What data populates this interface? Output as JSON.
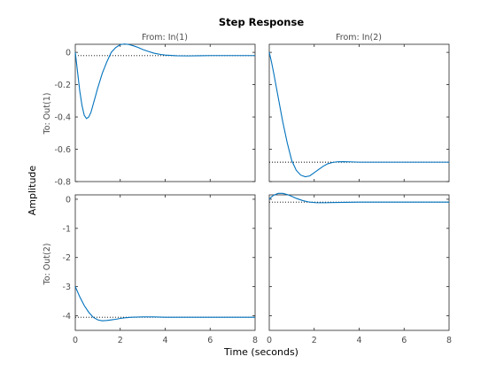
{
  "chart_data": {
    "type": "line",
    "title": "Step Response",
    "xlabel": "Time (seconds)",
    "ylabel": "Amplitude",
    "grid": false,
    "legend": "none",
    "colors": {
      "response": "#0072bd",
      "steady_state": "#000000",
      "frame": "#262626",
      "axis_text": "#4d4d4d"
    },
    "column_headers": [
      "From: In(1)",
      "From: In(2)"
    ],
    "row_labels": [
      "To: Out(1)",
      "To: Out(2)"
    ],
    "xlim": [
      0,
      8
    ],
    "x_ticks": [
      "0",
      "2",
      "4",
      "6",
      "8"
    ],
    "rows": [
      {
        "ylim": [
          -0.8,
          0.05
        ],
        "y_ticks": [
          {
            "value": 0,
            "label": "0"
          },
          {
            "value": -0.2,
            "label": "-0.2"
          },
          {
            "value": -0.4,
            "label": "-0.4"
          },
          {
            "value": -0.6,
            "label": "-0.6"
          },
          {
            "value": -0.8,
            "label": "-0.8"
          }
        ]
      },
      {
        "ylim": [
          -4.5,
          0.15
        ],
        "y_ticks": [
          {
            "value": 0,
            "label": "0"
          },
          {
            "value": -1,
            "label": "-1"
          },
          {
            "value": -2,
            "label": "-2"
          },
          {
            "value": -3,
            "label": "-3"
          },
          {
            "value": -4,
            "label": "-4"
          }
        ]
      }
    ],
    "panels": [
      {
        "id": "out1-in1",
        "row": 0,
        "col": 0,
        "steady_state": -0.02,
        "end_time": 8,
        "x": [
          0,
          0.1,
          0.2,
          0.3,
          0.4,
          0.5,
          0.6,
          0.7,
          0.8,
          0.9,
          1.0,
          1.2,
          1.4,
          1.6,
          1.8,
          2.0,
          2.2,
          2.4,
          2.6,
          2.8,
          3.0,
          3.2,
          3.5,
          3.8,
          4.0,
          4.5,
          5.0,
          5.5,
          6.0,
          7.0,
          8.0
        ],
        "y": [
          0,
          -0.12,
          -0.24,
          -0.33,
          -0.39,
          -0.41,
          -0.4,
          -0.37,
          -0.32,
          -0.27,
          -0.22,
          -0.13,
          -0.06,
          0.0,
          0.03,
          0.048,
          0.052,
          0.048,
          0.04,
          0.03,
          0.018,
          0.008,
          -0.005,
          -0.013,
          -0.017,
          -0.021,
          -0.022,
          -0.021,
          -0.02,
          -0.02,
          -0.02
        ]
      },
      {
        "id": "out1-in2",
        "row": 0,
        "col": 1,
        "steady_state": -0.68,
        "end_time": 8,
        "x": [
          0,
          0.1,
          0.2,
          0.4,
          0.6,
          0.8,
          1.0,
          1.2,
          1.4,
          1.6,
          1.8,
          2.0,
          2.2,
          2.4,
          2.6,
          2.8,
          3.0,
          3.3,
          3.6,
          4.0,
          5.0,
          6.0,
          7.0,
          8.0
        ],
        "y": [
          0,
          -0.06,
          -0.13,
          -0.28,
          -0.43,
          -0.56,
          -0.67,
          -0.73,
          -0.76,
          -0.77,
          -0.765,
          -0.745,
          -0.725,
          -0.705,
          -0.69,
          -0.682,
          -0.678,
          -0.677,
          -0.678,
          -0.68,
          -0.68,
          -0.68,
          -0.68,
          -0.68
        ]
      },
      {
        "id": "out2-in1",
        "row": 1,
        "col": 0,
        "steady_state": -4.05,
        "end_time": 8,
        "x": [
          0,
          0.2,
          0.4,
          0.6,
          0.8,
          1.0,
          1.2,
          1.4,
          1.6,
          1.8,
          2.0,
          2.2,
          2.5,
          3.0,
          3.5,
          4.0,
          5.0,
          6.0,
          7.0,
          8.0
        ],
        "y": [
          -3.0,
          -3.35,
          -3.65,
          -3.88,
          -4.05,
          -4.14,
          -4.17,
          -4.16,
          -4.14,
          -4.12,
          -4.09,
          -4.07,
          -4.05,
          -4.04,
          -4.04,
          -4.05,
          -4.05,
          -4.05,
          -4.05,
          -4.05
        ]
      },
      {
        "id": "out2-in2",
        "row": 1,
        "col": 1,
        "steady_state": -0.1,
        "end_time": 8,
        "x": [
          0,
          0.1,
          0.2,
          0.4,
          0.6,
          0.8,
          1.0,
          1.2,
          1.5,
          1.8,
          2.1,
          2.5,
          3.0,
          4.0,
          5.0,
          6.0,
          7.0,
          8.0
        ],
        "y": [
          0,
          0.08,
          0.14,
          0.2,
          0.2,
          0.16,
          0.1,
          0.03,
          -0.05,
          -0.1,
          -0.12,
          -0.12,
          -0.11,
          -0.1,
          -0.1,
          -0.1,
          -0.1,
          -0.1
        ]
      }
    ]
  }
}
